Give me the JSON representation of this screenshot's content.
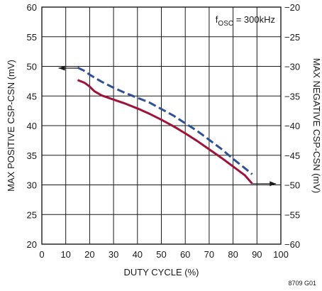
{
  "chart_data": {
    "type": "line",
    "title": "",
    "xlabel": "DUTY CYCLE (%)",
    "ylabel_left": "MAX POSITIVE CSP-CSN (mV)",
    "ylabel_right": "MAX NEGATIVE CSP-CSN (mV)",
    "xlim": [
      0,
      100
    ],
    "ylim_left": [
      20,
      60
    ],
    "ylim_right": [
      -60,
      -20
    ],
    "x_ticks": [
      "0",
      "10",
      "20",
      "30",
      "40",
      "50",
      "60",
      "70",
      "80",
      "90",
      "100"
    ],
    "y_ticks_left": [
      "20",
      "25",
      "30",
      "35",
      "40",
      "45",
      "50",
      "55",
      "60"
    ],
    "y_ticks_right": [
      "-60",
      "-55",
      "-50",
      "-45",
      "-40",
      "-35",
      "-30",
      "-25",
      "-20"
    ],
    "grid": true,
    "annotation": {
      "prefix": "f",
      "subscript": "OSC",
      "suffix": " = 300kHz"
    },
    "figure_number": "8709 G01",
    "series": [
      {
        "style": "solid",
        "color": "#a0123a",
        "axis": "left",
        "x": [
          15,
          18,
          20,
          22,
          25,
          30,
          35,
          40,
          45,
          50,
          55,
          60,
          65,
          70,
          75,
          80,
          85,
          88
        ],
        "y": [
          47.7,
          47.2,
          46.6,
          45.8,
          45.1,
          44.4,
          43.7,
          42.9,
          42.0,
          41.0,
          39.9,
          38.7,
          37.4,
          36.0,
          34.6,
          33.1,
          31.6,
          30.2
        ]
      },
      {
        "style": "dashed",
        "color": "#2e4f9a",
        "axis": "right",
        "x": [
          15,
          18,
          20,
          25,
          30,
          35,
          40,
          45,
          50,
          55,
          60,
          65,
          70,
          75,
          80,
          85,
          88
        ],
        "y": [
          -30.2,
          -30.8,
          -31.4,
          -32.6,
          -33.6,
          -34.5,
          -35.3,
          -36.1,
          -37.2,
          -38.3,
          -39.6,
          -40.9,
          -42.4,
          -43.9,
          -45.6,
          -47.2,
          -48.2
        ]
      }
    ],
    "axis_arrows": [
      {
        "from_series": 1,
        "direction": "left",
        "x_start": 15,
        "x_end": 7,
        "y": 49.7
      },
      {
        "from_series": 0,
        "direction": "right",
        "x_start": 88,
        "x_end": 98,
        "y": 30.2
      }
    ]
  }
}
